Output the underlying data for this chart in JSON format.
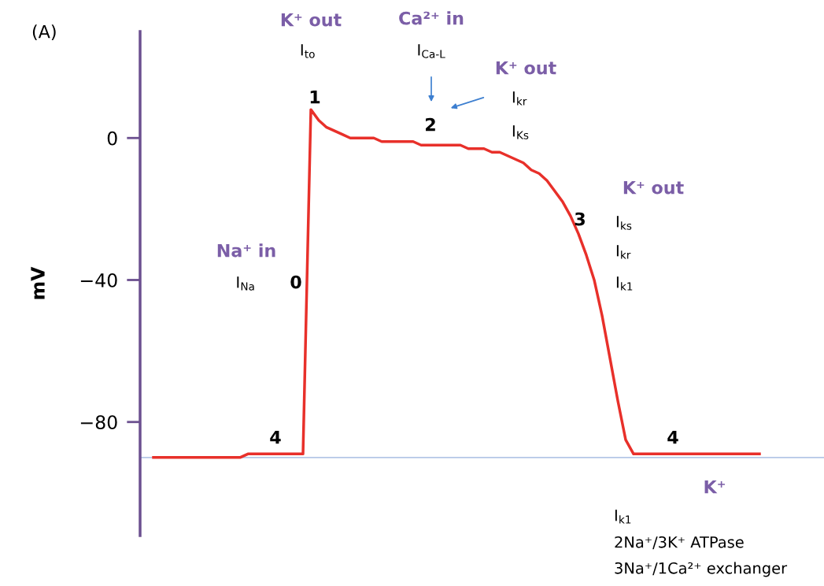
{
  "chart_data": {
    "type": "line",
    "ylabel": "mV",
    "categories": [
      null,
      null,
      null,
      null,
      null,
      null,
      null,
      null,
      null,
      null,
      null,
      null,
      null,
      null,
      null,
      null,
      null,
      null,
      null,
      null,
      null,
      null,
      null,
      null,
      null,
      null,
      null,
      null,
      null,
      null,
      null,
      null,
      null,
      null,
      null,
      null,
      null,
      null,
      null,
      null,
      null,
      null,
      null,
      null,
      null,
      null,
      null,
      null,
      null,
      null,
      null,
      null,
      null,
      null,
      null,
      null,
      null,
      null,
      null,
      null,
      null,
      null,
      null,
      null,
      null,
      null,
      null,
      null,
      null,
      null,
      null,
      null,
      null,
      null,
      null,
      null,
      null,
      null
    ],
    "series": [
      {
        "color": "#e8302a",
        "values": [
          -90,
          -90,
          -90,
          -90,
          -90,
          -90,
          -90,
          -90,
          -90,
          -90,
          -90,
          -90,
          -89,
          -89,
          -89,
          -89,
          -89,
          -89,
          -89,
          -89,
          8,
          5,
          3,
          2,
          1,
          0,
          0,
          0,
          0,
          -1,
          -1,
          -1,
          -1,
          -1,
          -2,
          -2,
          -2,
          -2,
          -2,
          -2,
          -3,
          -3,
          -3,
          -4,
          -4,
          -5,
          -6,
          -7,
          -9,
          -10,
          -12,
          -15,
          -18,
          -22,
          -27,
          -33,
          -40,
          -50,
          -62,
          -74,
          -85,
          -89,
          -89,
          -89,
          -89,
          -89,
          -89,
          -89,
          -89,
          -89,
          -89,
          -89,
          -89,
          -89,
          -89,
          -89,
          -89,
          -89
        ]
      }
    ],
    "ylim": [
      -112,
      30
    ],
    "yticks": [
      {
        "value": 0,
        "label": "0"
      },
      {
        "value": -40,
        "label": "−40"
      },
      {
        "value": -80,
        "label": "−80"
      }
    ],
    "tick_labels": "y",
    "grid": false,
    "legend": false,
    "marker": "none",
    "line_style": "solid",
    "ref_lines": [
      {
        "axis": "y",
        "value": -90,
        "color": "#b4c7e7"
      }
    ],
    "annotations": [
      "(A)",
      "K⁺ out",
      "I$_{to}$",
      "Ca²⁺ in",
      "I$_{Ca-L}$",
      "K⁺ out",
      "I$_{kr}$",
      "I$_{Ks}$",
      "1",
      "2",
      "K⁺ out",
      "3",
      "I$_{ks}$",
      "I$_{kr}$",
      "I$_{k1}$",
      "Na⁺ in",
      "I$_{Na}$",
      "0",
      "4",
      "4",
      "K⁺",
      "I$_{k1}$",
      "2Na⁺/3K⁺ ATPase",
      "3Na⁺/1Ca²⁺ exchanger"
    ]
  }
}
